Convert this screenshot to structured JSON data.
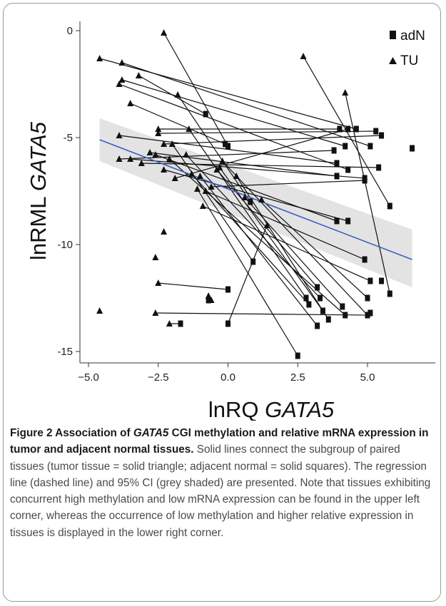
{
  "chart_data": {
    "type": "scatter",
    "xlabel_plain": "lnRQ ",
    "xlabel_italic": "GATA5",
    "ylabel_plain": "lnRML ",
    "ylabel_italic": "GATA5",
    "xlim": [
      -5.1,
      7.0
    ],
    "ylim": [
      -16.1,
      0.3
    ],
    "x_ticks": [
      -5.0,
      -2.5,
      0.0,
      2.5,
      5.0
    ],
    "x_tick_labels": [
      "−5.0",
      "−2.5",
      "0.0",
      "2.5",
      "5.0"
    ],
    "y_ticks": [
      0,
      -5,
      -10,
      -15
    ],
    "y_tick_labels": [
      "0",
      "-5",
      "-10",
      "-15"
    ],
    "legend_position": "top-right",
    "series": [
      {
        "name": "adN",
        "marker": "square"
      },
      {
        "name": "TU",
        "marker": "triangle"
      }
    ],
    "regression": {
      "x1": -4.6,
      "y1": -5.1,
      "x2": 6.6,
      "y2": -10.7,
      "color": "#3b5fc0",
      "ci_upper": [
        -4.1,
        -9.3
      ],
      "ci_lower": [
        -6.1,
        -12.0
      ],
      "ci_color": "#e3e3e3"
    },
    "pairs": [
      {
        "tu": [
          -2.3,
          -0.1
        ],
        "adn": [
          0.0,
          -5.4
        ]
      },
      {
        "tu": [
          -4.6,
          -1.3
        ],
        "adn": [
          4.6,
          -4.6
        ]
      },
      {
        "tu": [
          -3.8,
          -1.5
        ],
        "adn": [
          5.1,
          -5.4
        ]
      },
      {
        "tu": [
          -3.8,
          -2.3
        ],
        "adn": [
          4.2,
          -5.4
        ]
      },
      {
        "tu": [
          -3.9,
          -2.5
        ],
        "adn": [
          4.3,
          -6.5
        ]
      },
      {
        "tu": [
          -3.2,
          -2.1
        ],
        "adn": [
          -0.8,
          -3.9
        ]
      },
      {
        "tu": [
          -3.5,
          -3.4
        ],
        "adn": [
          -0.1,
          -5.3
        ]
      },
      {
        "tu": [
          -2.5,
          -4.6
        ],
        "adn": [
          4.0,
          -4.6
        ]
      },
      {
        "tu": [
          -2.5,
          -4.8
        ],
        "adn": [
          5.3,
          -4.7
        ]
      },
      {
        "tu": [
          -2.3,
          -5.3
        ],
        "adn": [
          5.5,
          -4.9
        ]
      },
      {
        "tu": [
          -3.9,
          -4.9
        ],
        "adn": [
          3.9,
          -6.2
        ]
      },
      {
        "tu": [
          -3.9,
          -6.0
        ],
        "adn": [
          3.8,
          -5.6
        ]
      },
      {
        "tu": [
          -3.5,
          -6.0
        ],
        "adn": [
          4.9,
          -6.9
        ]
      },
      {
        "tu": [
          -3.1,
          -6.2
        ],
        "adn": [
          5.4,
          -6.4
        ]
      },
      {
        "tu": [
          -2.8,
          -5.7
        ],
        "adn": [
          3.9,
          -6.8
        ]
      },
      {
        "tu": [
          -2.6,
          -5.8
        ],
        "adn": [
          3.9,
          -8.9
        ]
      },
      {
        "tu": [
          -2.3,
          -6.5
        ],
        "adn": [
          4.3,
          -8.9
        ]
      },
      {
        "tu": [
          -1.8,
          -3.0
        ],
        "adn": [
          0.8,
          -8.0
        ]
      },
      {
        "tu": [
          -1.4,
          -4.6
        ],
        "adn": [
          2.8,
          -12.5
        ]
      },
      {
        "tu": [
          -1.3,
          -6.7
        ],
        "adn": [
          2.9,
          -12.8
        ]
      },
      {
        "tu": [
          -0.8,
          -7.5
        ],
        "adn": [
          4.9,
          -10.7
        ]
      },
      {
        "tu": [
          -0.4,
          -6.5
        ],
        "adn": [
          3.2,
          -12.0
        ]
      },
      {
        "tu": [
          -0.2,
          -6.1
        ],
        "adn": [
          5.0,
          -13.3
        ]
      },
      {
        "tu": [
          -2.5,
          -11.8
        ],
        "adn": [
          0.0,
          -12.1
        ]
      },
      {
        "tu": [
          -2.6,
          -13.2
        ],
        "adn": [
          5.0,
          -13.3
        ]
      },
      {
        "tu": [
          -2.1,
          -13.7
        ],
        "adn": [
          -1.7,
          -13.7
        ]
      },
      {
        "tu": [
          2.7,
          -1.2
        ],
        "adn": [
          5.8,
          -8.2
        ]
      },
      {
        "tu": [
          4.2,
          -2.9
        ],
        "adn": [
          5.8,
          -12.3
        ]
      },
      {
        "tu": [
          -1.5,
          -5.8
        ],
        "adn": [
          3.3,
          -12.5
        ]
      },
      {
        "tu": [
          -1.0,
          -6.8
        ],
        "adn": [
          3.2,
          -13.8
        ]
      },
      {
        "tu": [
          -0.3,
          -6.4
        ],
        "adn": [
          3.4,
          -13.1
        ]
      },
      {
        "tu": [
          -2.0,
          -5.3
        ],
        "adn": [
          0.9,
          -10.8
        ]
      },
      {
        "tu": [
          -1.1,
          -7.4
        ],
        "adn": [
          2.5,
          -15.2
        ]
      },
      {
        "tu": [
          -0.6,
          -12.6
        ],
        "adn": [
          -0.7,
          -12.6
        ]
      },
      {
        "tu": [
          1.2,
          -7.9
        ],
        "adn": [
          5.0,
          -12.5
        ]
      },
      {
        "tu": [
          -0.9,
          -8.2
        ],
        "adn": [
          5.1,
          -11.7
        ]
      },
      {
        "tu": [
          0.6,
          -7.8
        ],
        "adn": [
          4.1,
          -12.9
        ]
      },
      {
        "tu": [
          0.3,
          -6.8
        ],
        "adn": [
          3.6,
          -13.5
        ]
      },
      {
        "tu": [
          1.4,
          -9.1
        ],
        "adn": [
          0.0,
          -13.7
        ]
      },
      {
        "tu": [
          -2.1,
          -6.0
        ],
        "adn": [
          4.2,
          -13.3
        ]
      },
      {
        "tu": [
          -1.9,
          -6.9
        ],
        "adn": [
          4.3,
          -4.6
        ]
      },
      {
        "tu": [
          -0.6,
          -7.3
        ],
        "adn": [
          4.9,
          -7.0
        ]
      }
    ],
    "extra_tu": [
      [
        -4.6,
        -13.1
      ],
      [
        -2.6,
        -10.6
      ],
      [
        -2.3,
        -9.4
      ],
      [
        -0.7,
        -12.4
      ]
    ],
    "extra_adn": [
      [
        6.6,
        -5.5
      ],
      [
        5.1,
        -13.2
      ],
      [
        5.5,
        -11.7
      ]
    ]
  },
  "caption": {
    "bold_1": "Figure 2 Association of ",
    "bold_italic": "GATA5",
    "bold_2": " CGI methylation and relative mRNA expression in tumor and adjacent normal tissues.",
    "body": " Solid lines connect the subgroup of paired tissues (tumor tissue = solid triangle; adjacent normal = solid squares). The regression line (dashed line) and 95% CI (grey shaded) are presented. Note that tissues exhibiting concurrent high methylation and low mRNA expression can be found in the upper left corner, whereas the occurrence of low methylation and higher relative expression in tissues is displayed in the lower right corner."
  }
}
